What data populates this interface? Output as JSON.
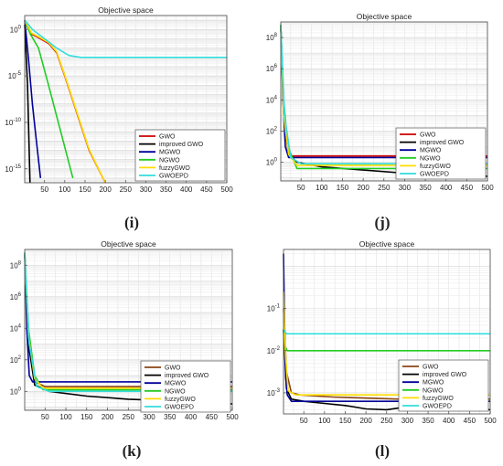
{
  "panels": [
    {
      "id": "i",
      "caption": "(i)",
      "title": "Objective space",
      "xticks": [
        50,
        100,
        150,
        200,
        250,
        300,
        350,
        400,
        450,
        500
      ],
      "yticks": [
        {
          "v": 0,
          "sup": "0"
        },
        {
          "v": -5,
          "sup": "-5"
        },
        {
          "v": -10,
          "sup": "-10"
        },
        {
          "v": -15,
          "sup": "-15"
        }
      ],
      "legend": [
        "GWO",
        "improved GWO",
        "MGWO",
        "NGWO",
        "fuzzyGWO",
        "GWOEPD"
      ],
      "chart_data": {
        "type": "line",
        "title": "Objective space",
        "xlim": [
          1,
          500
        ],
        "ylim_log10": [
          -16.5,
          1.5
        ],
        "y_scale": "log",
        "grid": true,
        "legend_position": "right",
        "series": [
          {
            "name": "GWO",
            "color": "#cc0000",
            "x": [
              1,
              18,
              40,
              60,
              80,
              100,
              130,
              160,
              200
            ],
            "log10y": [
              1,
              -0.5,
              -1,
              -1.5,
              -2.5,
              -5,
              -9,
              -13,
              -17
            ]
          },
          {
            "name": "improved GWO",
            "color": "#000000",
            "x": [
              1,
              8,
              14
            ],
            "log10y": [
              0.5,
              -6,
              -17
            ]
          },
          {
            "name": "MGWO",
            "color": "#000099",
            "x": [
              1,
              10,
              20,
              30,
              40
            ],
            "log10y": [
              1,
              -3,
              -8,
              -12,
              -16
            ]
          },
          {
            "name": "NGWO",
            "color": "#22cc22",
            "x": [
              1,
              15,
              35,
              60,
              90,
              120
            ],
            "log10y": [
              1,
              -0.5,
              -2,
              -6,
              -11,
              -16
            ]
          },
          {
            "name": "fuzzyGWO",
            "color": "#ffdd00",
            "x": [
              1,
              18,
              40,
              60,
              80,
              100,
              130,
              160,
              200
            ],
            "log10y": [
              1,
              -0.4,
              -0.9,
              -1.4,
              -2.4,
              -4.9,
              -8.9,
              -12.9,
              -17
            ]
          },
          {
            "name": "GWOEPD",
            "color": "#33dddd",
            "x": [
              1,
              20,
              50,
              80,
              110,
              140,
              200,
              500
            ],
            "log10y": [
              1,
              0,
              -1,
              -2,
              -2.8,
              -3,
              -3,
              -3
            ]
          }
        ]
      }
    },
    {
      "id": "j",
      "caption": "(j)",
      "title": "Objective space",
      "xticks": [
        50,
        100,
        150,
        200,
        250,
        300,
        350,
        400,
        450,
        500
      ],
      "yticks": [
        {
          "v": 8,
          "sup": "8"
        },
        {
          "v": 6,
          "sup": "6"
        },
        {
          "v": 4,
          "sup": "4"
        },
        {
          "v": 2,
          "sup": "2"
        },
        {
          "v": 0,
          "sup": "0"
        }
      ],
      "legend": [
        "GWO",
        "improved GWO",
        "MGWO",
        "NGWO",
        "fuzzyGWO",
        "GWOEPD"
      ],
      "chart_data": {
        "type": "line",
        "title": "Objective space",
        "xlim": [
          1,
          500
        ],
        "ylim_log10": [
          -1.2,
          9
        ],
        "y_scale": "log",
        "grid": true,
        "legend_position": "right",
        "series": [
          {
            "name": "GWO",
            "color": "#cc0000",
            "x": [
              1,
              6,
              12,
              20,
              500
            ],
            "log10y": [
              8.8,
              5,
              2,
              0.4,
              0.4
            ]
          },
          {
            "name": "improved GWO",
            "color": "#000000",
            "x": [
              1,
              8,
              20,
              40,
              100,
              200,
              300,
              400,
              500
            ],
            "log10y": [
              8.8,
              3,
              0.5,
              0,
              -0.3,
              -0.5,
              -0.7,
              -0.8,
              -0.9
            ]
          },
          {
            "name": "MGWO",
            "color": "#000099",
            "x": [
              1,
              6,
              12,
              20,
              500
            ],
            "log10y": [
              8.8,
              4,
              1,
              0.3,
              0.3
            ]
          },
          {
            "name": "NGWO",
            "color": "#22cc22",
            "x": [
              1,
              8,
              18,
              40,
              500
            ],
            "log10y": [
              8.8,
              4,
              1,
              -0.4,
              -0.4
            ]
          },
          {
            "name": "fuzzyGWO",
            "color": "#ffdd00",
            "x": [
              1,
              8,
              20,
              40,
              500
            ],
            "log10y": [
              8.8,
              3,
              0.5,
              -0.2,
              -0.2
            ]
          },
          {
            "name": "GWOEPD",
            "color": "#33dddd",
            "x": [
              1,
              10,
              25,
              50,
              500
            ],
            "log10y": [
              8.8,
              3,
              0.3,
              -0.1,
              -0.1
            ]
          }
        ]
      }
    },
    {
      "id": "k",
      "caption": "(k)",
      "title": "Objective space",
      "xticks": [
        50,
        100,
        150,
        200,
        250,
        300,
        350,
        400,
        450,
        500
      ],
      "yticks": [
        {
          "v": 8,
          "sup": "8"
        },
        {
          "v": 6,
          "sup": "6"
        },
        {
          "v": 4,
          "sup": "4"
        },
        {
          "v": 2,
          "sup": "2"
        },
        {
          "v": 0,
          "sup": "0"
        }
      ],
      "legend": [
        "GWO",
        "improved GWO",
        "MGWO",
        "NGWO",
        "fuzzyGWO",
        "GWOEPD"
      ],
      "chart_data": {
        "type": "line",
        "title": "Objective space",
        "xlim": [
          1,
          500
        ],
        "ylim_log10": [
          -1.2,
          9
        ],
        "y_scale": "log",
        "grid": true,
        "legend_position": "right",
        "series": [
          {
            "name": "GWO",
            "color": "#8b4513",
            "x": [
              1,
              10,
              25,
              50,
              500
            ],
            "log10y": [
              8.8,
              3,
              0.6,
              0.3,
              0.3
            ]
          },
          {
            "name": "improved GWO",
            "color": "#000000",
            "x": [
              1,
              10,
              25,
              60,
              150,
              250,
              350,
              500
            ],
            "log10y": [
              8.8,
              3,
              0.4,
              0,
              -0.3,
              -0.5,
              -0.6,
              -0.8
            ]
          },
          {
            "name": "MGWO",
            "color": "#000099",
            "x": [
              1,
              6,
              12,
              20,
              500
            ],
            "log10y": [
              8.8,
              4,
              1,
              0.6,
              0.6
            ]
          },
          {
            "name": "NGWO",
            "color": "#22cc22",
            "x": [
              1,
              10,
              25,
              45,
              500
            ],
            "log10y": [
              8.8,
              4,
              1,
              0.1,
              0.1
            ]
          },
          {
            "name": "fuzzyGWO",
            "color": "#ffdd00",
            "x": [
              1,
              10,
              25,
              45,
              500
            ],
            "log10y": [
              8.8,
              3.5,
              0.8,
              0.2,
              0.2
            ]
          },
          {
            "name": "GWOEPD",
            "color": "#33dddd",
            "x": [
              1,
              12,
              30,
              60,
              500
            ],
            "log10y": [
              8.8,
              3,
              0.3,
              0,
              0
            ]
          }
        ]
      }
    },
    {
      "id": "l",
      "caption": "(l)",
      "title": "Objective space",
      "xticks": [
        50,
        100,
        150,
        200,
        250,
        300,
        350,
        400,
        450,
        500
      ],
      "yticks": [
        {
          "v": -1,
          "sup": "-1"
        },
        {
          "v": -2,
          "sup": "-2"
        },
        {
          "v": -3,
          "sup": "-3"
        }
      ],
      "legend": [
        "GWO",
        "improved GWO",
        "MGWO",
        "NGWO",
        "fuzzyGWO",
        "GWOEPD"
      ],
      "chart_data": {
        "type": "line",
        "title": "Objective space",
        "xlim": [
          1,
          500
        ],
        "ylim_log10": [
          -3.5,
          0.4
        ],
        "y_scale": "log",
        "grid": true,
        "legend_position": "right",
        "series": [
          {
            "name": "GWO",
            "color": "#8b4513",
            "x": [
              1,
              8,
              20,
              40,
              120,
              280,
              500
            ],
            "log10y": [
              -1,
              -2.5,
              -3,
              -3.05,
              -3.1,
              -3.15,
              -3.15
            ]
          },
          {
            "name": "improved GWO",
            "color": "#000000",
            "x": [
              1,
              8,
              20,
              50,
              100,
              150,
              200,
              250,
              300,
              350,
              420,
              500
            ],
            "log10y": [
              -1.5,
              -2.9,
              -3.15,
              -3.2,
              -3.25,
              -3.3,
              -3.38,
              -3.4,
              -3.33,
              -3.35,
              -3.36,
              -3.4
            ]
          },
          {
            "name": "MGWO",
            "color": "#000099",
            "x": [
              1,
              3,
              6,
              10,
              20,
              500
            ],
            "log10y": [
              0.3,
              -1,
              -2.6,
              -3.05,
              -3.2,
              -3.2
            ]
          },
          {
            "name": "NGWO",
            "color": "#22cc22",
            "x": [
              1,
              5,
              10,
              500
            ],
            "log10y": [
              -1.5,
              -1.9,
              -2,
              -2
            ]
          },
          {
            "name": "fuzzyGWO",
            "color": "#ffdd00",
            "x": [
              1,
              5,
              12,
              30,
              500
            ],
            "log10y": [
              -0.6,
              -2,
              -2.95,
              -3.05,
              -3.05
            ]
          },
          {
            "name": "GWOEPD",
            "color": "#33dddd",
            "x": [
              1,
              8,
              500
            ],
            "log10y": [
              -1.5,
              -1.6,
              -1.6
            ]
          }
        ]
      }
    }
  ]
}
